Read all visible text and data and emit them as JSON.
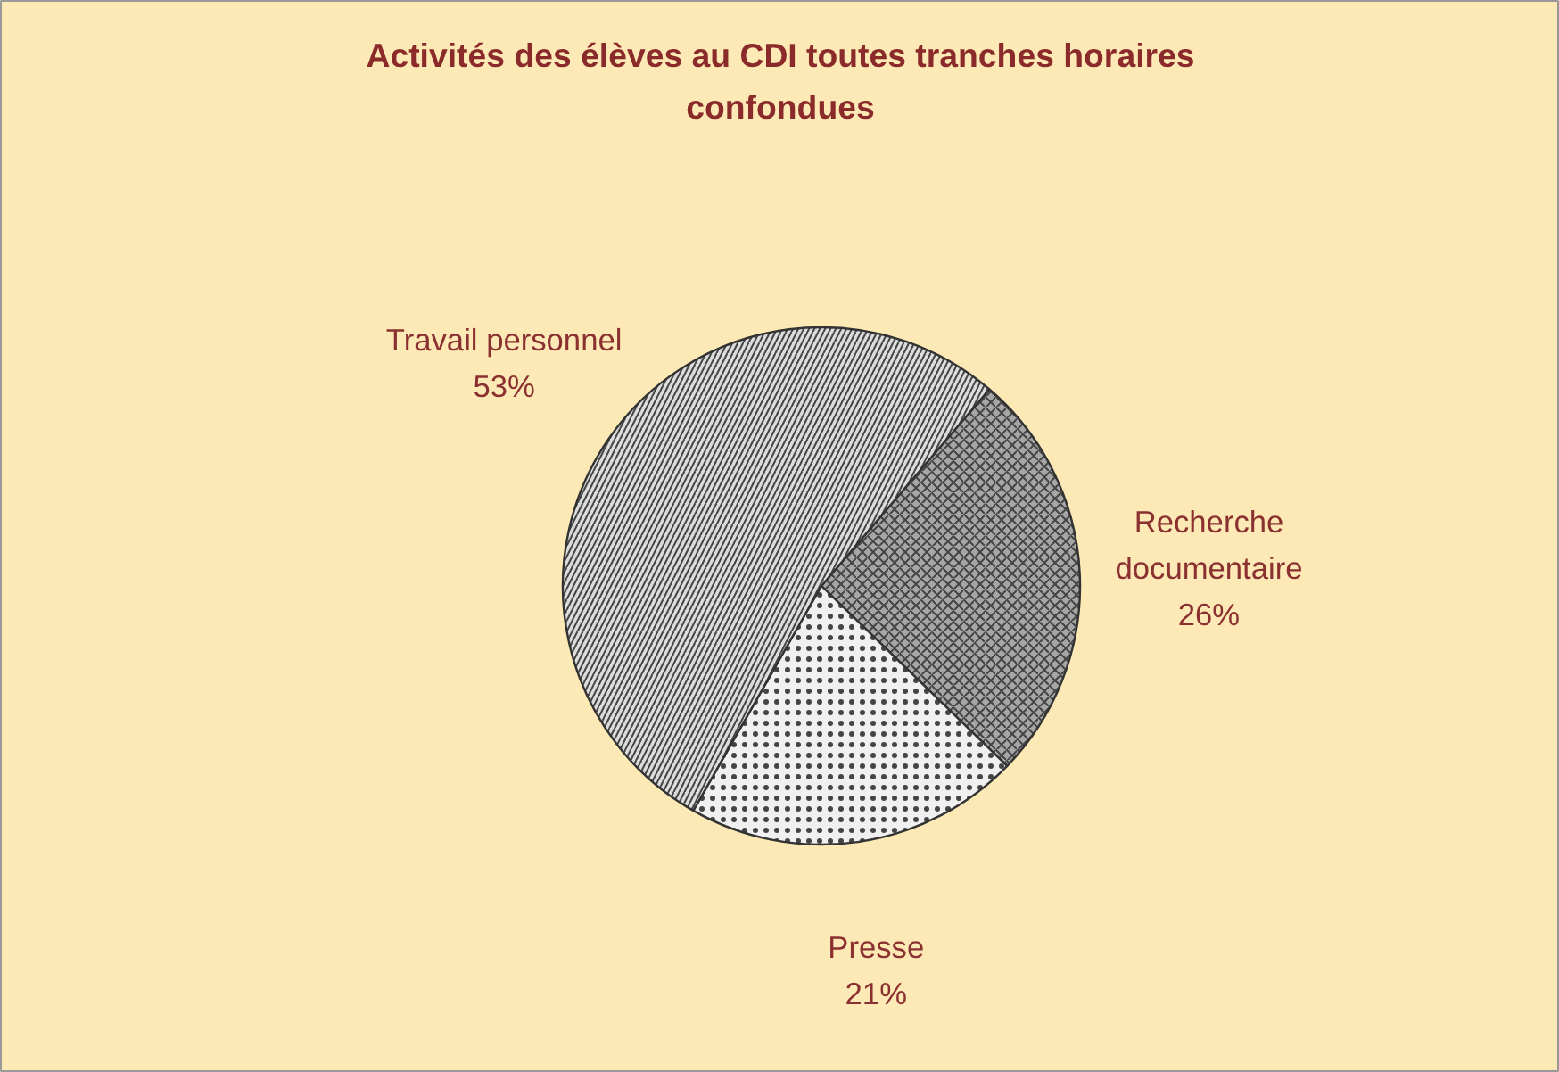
{
  "chart_data": {
    "type": "pie",
    "title": "Activités des élèves au CDI toutes tranches horaires confondues",
    "categories": [
      "Recherche documentaire",
      "Presse",
      "Travail personnel"
    ],
    "values": [
      26,
      21,
      53
    ],
    "value_labels": [
      "26%",
      "21%",
      "53%"
    ],
    "colors": [
      "#a6a6a6",
      "#f0f0f0",
      "#dcdcdc"
    ]
  }
}
